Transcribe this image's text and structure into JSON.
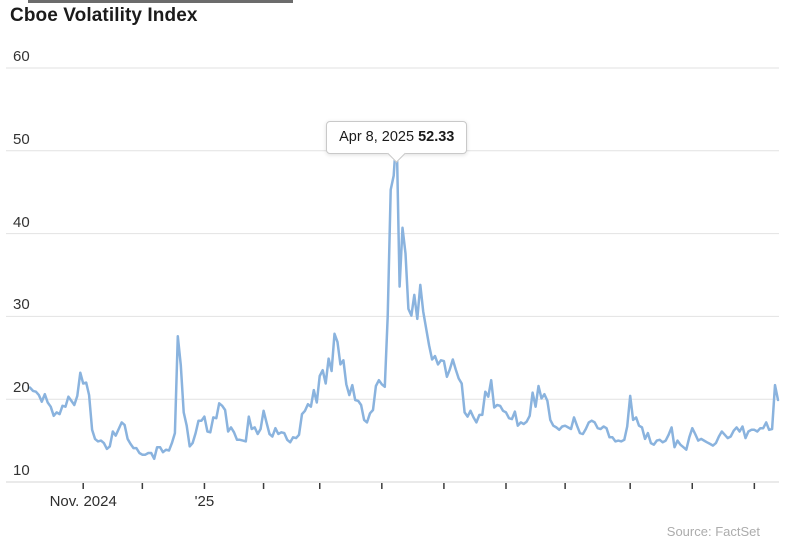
{
  "chart_data": {
    "type": "line",
    "title": "Cboe Volatility Index",
    "source": "Source: FactSet",
    "legend": "none",
    "grid": "horizontal",
    "y_axis": {
      "ticks": [
        10,
        20,
        30,
        40,
        50,
        60
      ],
      "range": [
        10,
        60
      ]
    },
    "x_axis": {
      "month_tick_indices": [
        18,
        38,
        59,
        79,
        98,
        119,
        140,
        161,
        181,
        203,
        224,
        245
      ],
      "month_tick_labels": [
        "Nov. 2024",
        "",
        "'25",
        "",
        "",
        "",
        "",
        "",
        "",
        "",
        "",
        ""
      ]
    },
    "tooltip": {
      "date": "Apr 8, 2025",
      "value": "52.33",
      "point_index": 124
    },
    "series": [
      {
        "name": "Cboe Volatility Index",
        "color": "#8ab3de",
        "values": [
          21.4,
          21.0,
          20.9,
          20.5,
          19.7,
          20.6,
          19.6,
          19.1,
          18.0,
          18.4,
          18.2,
          19.2,
          19.1,
          20.3,
          19.8,
          19.3,
          20.4,
          23.2,
          21.9,
          22.0,
          20.5,
          16.3,
          15.2,
          14.9,
          15.0,
          14.7,
          14.0,
          14.3,
          16.1,
          15.6,
          16.4,
          17.2,
          16.9,
          15.2,
          14.6,
          14.1,
          14.1,
          13.5,
          13.3,
          13.3,
          13.5,
          13.5,
          12.8,
          14.2,
          14.2,
          13.6,
          13.9,
          13.8,
          14.7,
          15.9,
          27.6,
          24.1,
          18.4,
          16.8,
          14.3,
          14.7,
          15.9,
          17.4,
          17.4,
          17.9,
          16.1,
          16.0,
          17.8,
          17.7,
          19.5,
          19.2,
          18.7,
          16.1,
          16.6,
          16.0,
          15.1,
          15.1,
          15.0,
          14.9,
          17.9,
          16.4,
          16.6,
          15.8,
          16.4,
          18.6,
          17.2,
          15.8,
          15.5,
          16.5,
          15.8,
          16.0,
          15.9,
          15.1,
          14.8,
          15.4,
          15.3,
          15.7,
          18.2,
          18.6,
          19.4,
          19.1,
          21.1,
          19.6,
          22.8,
          23.5,
          21.9,
          24.9,
          23.4,
          27.9,
          26.9,
          24.2,
          24.7,
          21.8,
          20.5,
          21.7,
          19.9,
          19.8,
          19.3,
          17.5,
          17.2,
          18.3,
          18.7,
          21.6,
          22.3,
          21.8,
          21.5,
          30.0,
          45.3,
          47.0,
          52.33,
          33.6,
          40.7,
          37.6,
          30.9,
          30.1,
          32.6,
          29.7,
          33.8,
          30.6,
          28.5,
          26.5,
          24.8,
          25.2,
          24.2,
          24.7,
          24.6,
          22.7,
          23.6,
          24.8,
          23.6,
          22.5,
          21.9,
          18.4,
          17.9,
          18.6,
          17.8,
          17.2,
          18.1,
          18.1,
          20.9,
          20.3,
          22.3,
          19.0,
          19.3,
          19.2,
          18.6,
          18.4,
          17.7,
          17.6,
          18.5,
          16.8,
          17.2,
          17.0,
          17.3,
          18.0,
          20.8,
          19.1,
          21.6,
          20.1,
          20.6,
          19.8,
          17.5,
          16.8,
          16.6,
          16.3,
          16.7,
          16.8,
          16.6,
          16.4,
          17.8,
          16.8,
          15.9,
          15.8,
          16.4,
          17.2,
          17.4,
          17.2,
          16.5,
          16.4,
          16.7,
          16.5,
          15.4,
          15.4,
          14.9,
          15.0,
          14.9,
          15.1,
          16.7,
          20.4,
          17.5,
          17.8,
          16.8,
          16.6,
          15.2,
          15.9,
          14.7,
          14.5,
          15.0,
          15.1,
          14.8,
          15.0,
          15.7,
          16.6,
          14.2,
          15.0,
          14.5,
          14.2,
          13.9,
          15.4,
          16.5,
          15.8,
          15.0,
          15.2,
          15.0,
          14.8,
          14.6,
          14.4,
          14.7,
          15.5,
          16.1,
          15.7,
          15.3,
          15.5,
          16.2,
          16.6,
          16.1,
          16.7,
          15.3,
          16.1,
          16.3,
          16.3,
          16.1,
          16.5,
          16.5,
          17.2,
          16.3,
          16.4,
          21.7,
          19.9
        ]
      }
    ],
    "colors": {
      "line": "#8ab3de",
      "grid": "#e2e2e2",
      "axis": "#d6d6d6",
      "tick": "#3c3c3c",
      "title": "#1b1b1b",
      "label": "#333333",
      "source": "#acacac"
    }
  }
}
